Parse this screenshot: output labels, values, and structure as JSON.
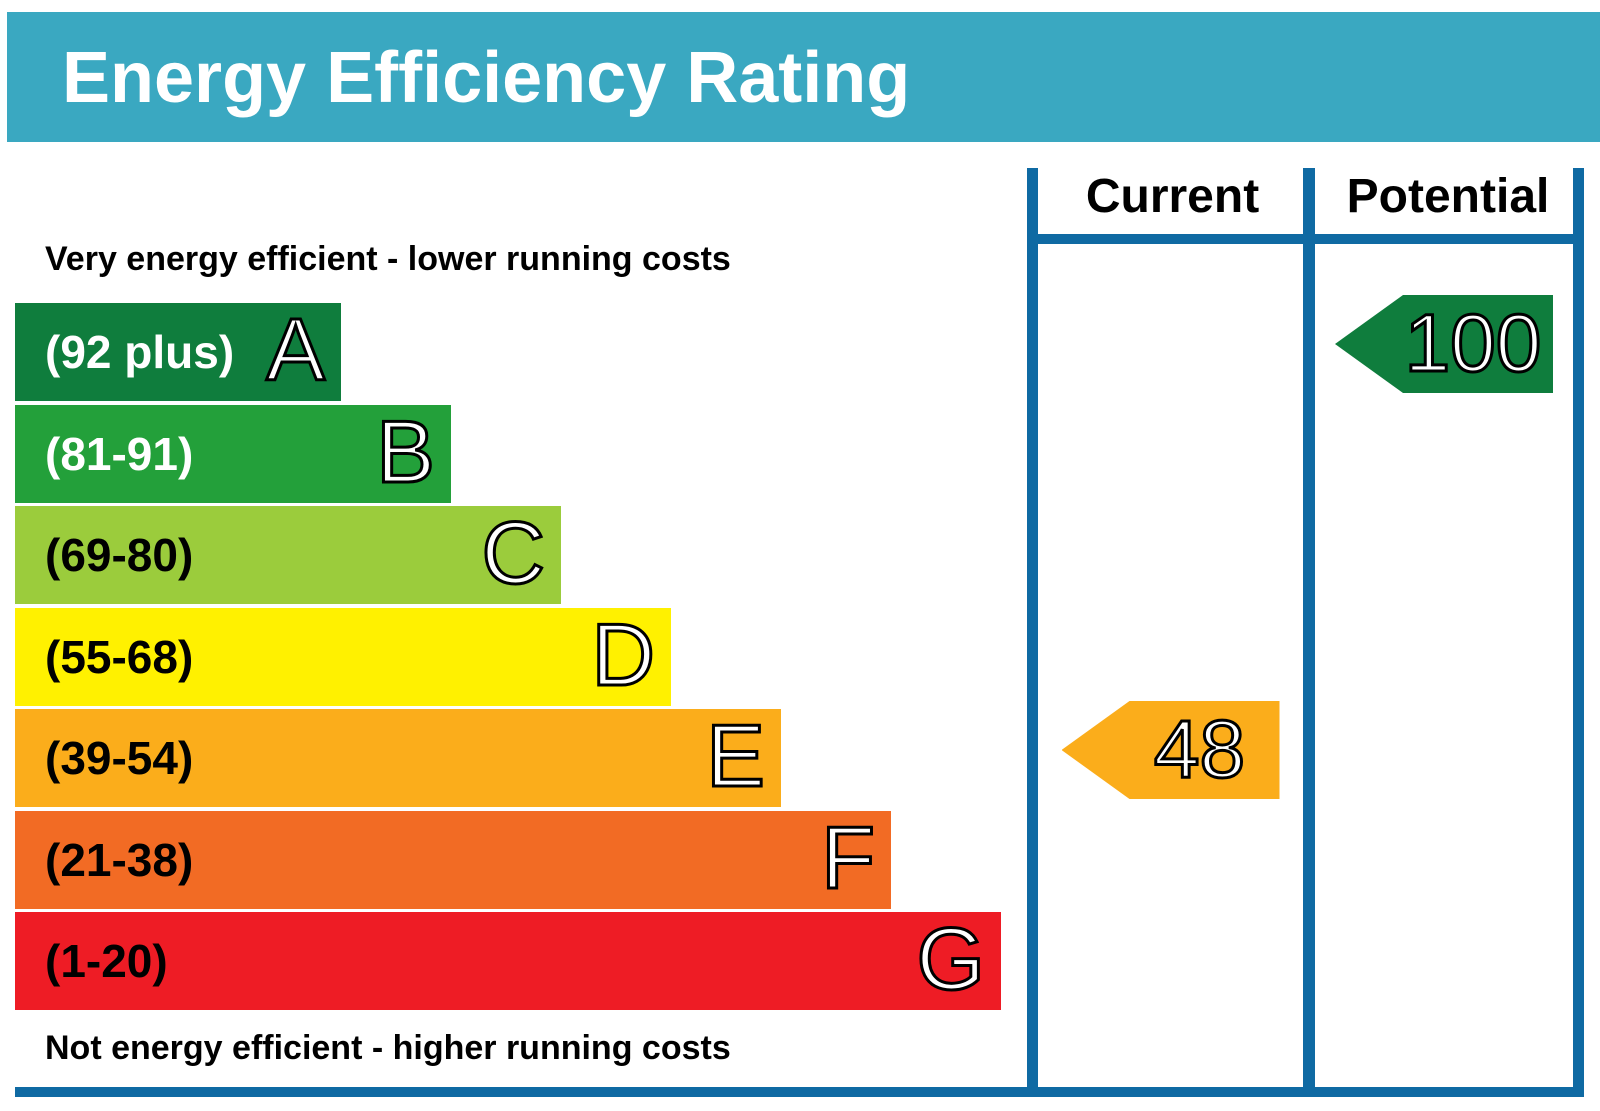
{
  "header": {
    "title": "Energy Efficiency Rating",
    "color": "#3aa8c1"
  },
  "captions": {
    "top": "Very energy efficient - lower running costs",
    "bottom": "Not energy efficient - higher running costs"
  },
  "columns": {
    "current": "Current",
    "potential": "Potential"
  },
  "frame_color": "#0f6aa3",
  "chart_data": {
    "type": "bar",
    "categories": [
      "A",
      "B",
      "C",
      "D",
      "E",
      "F",
      "G"
    ],
    "bands": [
      {
        "letter": "A",
        "range": "(92 plus)",
        "color": "#0f7d3d",
        "text_color": "#ffffff"
      },
      {
        "letter": "B",
        "range": "(81-91)",
        "color": "#23a03a",
        "text_color": "#ffffff"
      },
      {
        "letter": "C",
        "range": "(69-80)",
        "color": "#9bcc3c",
        "text_color": "#000000"
      },
      {
        "letter": "D",
        "range": "(55-68)",
        "color": "#fff100",
        "text_color": "#000000"
      },
      {
        "letter": "E",
        "range": "(39-54)",
        "color": "#fbad1b",
        "text_color": "#000000"
      },
      {
        "letter": "F",
        "range": "(21-38)",
        "color": "#f26b24",
        "text_color": "#000000"
      },
      {
        "letter": "G",
        "range": "(1-20)",
        "color": "#ee1c25",
        "text_color": "#000000"
      }
    ],
    "current": {
      "value": 48,
      "band": "E",
      "color": "#fbad1b"
    },
    "potential": {
      "value": 100,
      "band": "A",
      "color": "#0f7d3d"
    }
  }
}
